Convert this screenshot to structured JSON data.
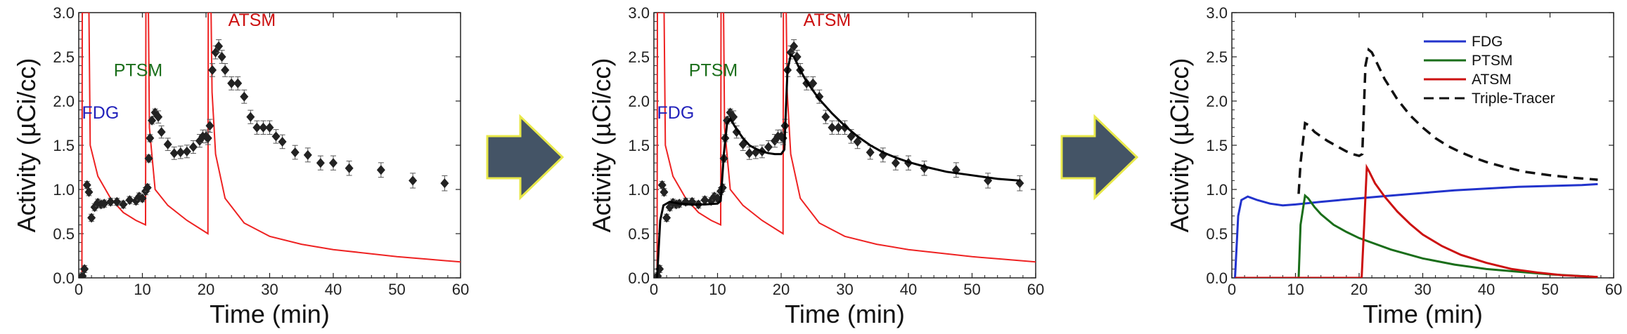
{
  "arrow_color": "#445466",
  "arrow_border": "#e8e84a",
  "chart_data": [
    {
      "type": "scatter",
      "xlabel": "Time (min)",
      "ylabel": "Activity (µCi/cc)",
      "xlim": [
        0,
        60
      ],
      "ylim": [
        0,
        3
      ],
      "xticks": [
        "0",
        "10",
        "20",
        "30",
        "40",
        "50",
        "60"
      ],
      "yticks": [
        "0.0",
        "0.5",
        "1.0",
        "1.5",
        "2.0",
        "2.5",
        "3.0"
      ],
      "labels": [
        {
          "text": "FDG",
          "color": "#2222bb",
          "x": 0.5,
          "y": 1.8
        },
        {
          "text": "PTSM",
          "color": "#1a6e1a",
          "x": 5.5,
          "y": 2.28
        },
        {
          "text": "ATSM",
          "color": "#cc1111",
          "x": 23.5,
          "y": 2.85
        }
      ],
      "input_curve_color": "#ee2222",
      "input_curve": [
        [
          0.5,
          0
        ],
        [
          0.55,
          3
        ],
        [
          1.6,
          3
        ],
        [
          1.8,
          1.5
        ],
        [
          3,
          1.15
        ],
        [
          5,
          0.9
        ],
        [
          7,
          0.74
        ],
        [
          9,
          0.65
        ],
        [
          10.5,
          0.6
        ],
        [
          10.55,
          3
        ],
        [
          10.95,
          3
        ],
        [
          11.1,
          1.7
        ],
        [
          12,
          1.0
        ],
        [
          14,
          0.82
        ],
        [
          17,
          0.65
        ],
        [
          20.3,
          0.5
        ],
        [
          20.35,
          3
        ],
        [
          20.8,
          3
        ],
        [
          20.95,
          2.1
        ],
        [
          21.5,
          1.4
        ],
        [
          23,
          0.9
        ],
        [
          26,
          0.62
        ],
        [
          30,
          0.47
        ],
        [
          35,
          0.38
        ],
        [
          40,
          0.32
        ],
        [
          45,
          0.28
        ],
        [
          50,
          0.24
        ],
        [
          55,
          0.21
        ],
        [
          60,
          0.18
        ]
      ],
      "points": [
        [
          0.2,
          0
        ],
        [
          0.4,
          0
        ],
        [
          0.6,
          0.02
        ],
        [
          0.9,
          0.1
        ],
        [
          1.3,
          1.05
        ],
        [
          1.6,
          0.97
        ],
        [
          2.0,
          0.68
        ],
        [
          2.5,
          0.8
        ],
        [
          3.0,
          0.85
        ],
        [
          3.5,
          0.83
        ],
        [
          4.0,
          0.84
        ],
        [
          5.0,
          0.86
        ],
        [
          6.0,
          0.86
        ],
        [
          7.0,
          0.83
        ],
        [
          8.0,
          0.88
        ],
        [
          9.0,
          0.87
        ],
        [
          9.5,
          0.92
        ],
        [
          10.0,
          0.9
        ],
        [
          10.5,
          0.98
        ],
        [
          10.8,
          1.02
        ],
        [
          11.0,
          1.35
        ],
        [
          11.2,
          1.58
        ],
        [
          11.5,
          1.78
        ],
        [
          12.0,
          1.87
        ],
        [
          12.5,
          1.82
        ],
        [
          13.0,
          1.65
        ],
        [
          14,
          1.51
        ],
        [
          15,
          1.41
        ],
        [
          16,
          1.42
        ],
        [
          17,
          1.43
        ],
        [
          18,
          1.48
        ],
        [
          19,
          1.55
        ],
        [
          19.5,
          1.6
        ],
        [
          20,
          1.6
        ],
        [
          20.3,
          1.58
        ],
        [
          20.6,
          1.72
        ],
        [
          21.0,
          2.35
        ],
        [
          21.5,
          2.55
        ],
        [
          22,
          2.62
        ],
        [
          22.5,
          2.5
        ],
        [
          23,
          2.35
        ],
        [
          24,
          2.2
        ],
        [
          25,
          2.2
        ],
        [
          26,
          2.05
        ],
        [
          27,
          1.82
        ],
        [
          28,
          1.7
        ],
        [
          29,
          1.7
        ],
        [
          30,
          1.7
        ],
        [
          31,
          1.6
        ],
        [
          32,
          1.54
        ],
        [
          34,
          1.42
        ],
        [
          36,
          1.39
        ],
        [
          38,
          1.3
        ],
        [
          40,
          1.3
        ],
        [
          42.5,
          1.24
        ],
        [
          47.5,
          1.22
        ],
        [
          52.5,
          1.1
        ],
        [
          57.5,
          1.07
        ]
      ]
    },
    {
      "type": "scatter",
      "xlabel": "Time (min)",
      "ylabel": "Activity (µCi/cc)",
      "xlim": [
        0,
        60
      ],
      "ylim": [
        0,
        3
      ],
      "xticks": [
        "0",
        "10",
        "20",
        "30",
        "40",
        "50",
        "60"
      ],
      "yticks": [
        "0.0",
        "0.5",
        "1.0",
        "1.5",
        "2.0",
        "2.5",
        "3.0"
      ],
      "labels": [
        {
          "text": "FDG",
          "color": "#2222bb",
          "x": 0.5,
          "y": 1.8
        },
        {
          "text": "PTSM",
          "color": "#1a6e1a",
          "x": 5.5,
          "y": 2.28
        },
        {
          "text": "ATSM",
          "color": "#cc1111",
          "x": 23.5,
          "y": 2.85
        }
      ],
      "input_curve_color": "#ee2222",
      "input_curve": [
        [
          0.5,
          0
        ],
        [
          0.55,
          3
        ],
        [
          1.6,
          3
        ],
        [
          1.8,
          1.5
        ],
        [
          3,
          1.15
        ],
        [
          5,
          0.9
        ],
        [
          7,
          0.74
        ],
        [
          9,
          0.65
        ],
        [
          10.5,
          0.6
        ],
        [
          10.55,
          3
        ],
        [
          10.95,
          3
        ],
        [
          11.1,
          1.7
        ],
        [
          12,
          1.0
        ],
        [
          14,
          0.82
        ],
        [
          17,
          0.65
        ],
        [
          20.3,
          0.5
        ],
        [
          20.35,
          3
        ],
        [
          20.8,
          3
        ],
        [
          20.95,
          2.1
        ],
        [
          21.5,
          1.4
        ],
        [
          23,
          0.9
        ],
        [
          26,
          0.62
        ],
        [
          30,
          0.47
        ],
        [
          35,
          0.38
        ],
        [
          40,
          0.32
        ],
        [
          45,
          0.28
        ],
        [
          50,
          0.24
        ],
        [
          55,
          0.21
        ],
        [
          60,
          0.18
        ]
      ],
      "fit_curve": [
        [
          0.5,
          0
        ],
        [
          1.0,
          0.65
        ],
        [
          1.5,
          0.82
        ],
        [
          2.5,
          0.86
        ],
        [
          4,
          0.84
        ],
        [
          6,
          0.83
        ],
        [
          8,
          0.83
        ],
        [
          10,
          0.84
        ],
        [
          10.5,
          0.87
        ],
        [
          11,
          1.4
        ],
        [
          11.5,
          1.75
        ],
        [
          12,
          1.8
        ],
        [
          13,
          1.68
        ],
        [
          14,
          1.58
        ],
        [
          15,
          1.5
        ],
        [
          16,
          1.46
        ],
        [
          17,
          1.43
        ],
        [
          18,
          1.41
        ],
        [
          19,
          1.4
        ],
        [
          20,
          1.4
        ],
        [
          20.5,
          1.45
        ],
        [
          21,
          2.35
        ],
        [
          21.5,
          2.52
        ],
        [
          22,
          2.5
        ],
        [
          23,
          2.35
        ],
        [
          24,
          2.22
        ],
        [
          26,
          2.02
        ],
        [
          28,
          1.86
        ],
        [
          30,
          1.72
        ],
        [
          32,
          1.6
        ],
        [
          34,
          1.5
        ],
        [
          36,
          1.42
        ],
        [
          38,
          1.36
        ],
        [
          40,
          1.31
        ],
        [
          43,
          1.25
        ],
        [
          46,
          1.2
        ],
        [
          50,
          1.16
        ],
        [
          54,
          1.12
        ],
        [
          57.5,
          1.1
        ]
      ],
      "points": [
        [
          0.2,
          0
        ],
        [
          0.4,
          0
        ],
        [
          0.6,
          0.02
        ],
        [
          0.9,
          0.1
        ],
        [
          1.3,
          1.05
        ],
        [
          1.6,
          0.97
        ],
        [
          2.0,
          0.68
        ],
        [
          2.5,
          0.8
        ],
        [
          3.0,
          0.85
        ],
        [
          3.5,
          0.83
        ],
        [
          4.0,
          0.84
        ],
        [
          5.0,
          0.86
        ],
        [
          6.0,
          0.86
        ],
        [
          7.0,
          0.83
        ],
        [
          8.0,
          0.88
        ],
        [
          9.0,
          0.87
        ],
        [
          9.5,
          0.92
        ],
        [
          10.0,
          0.9
        ],
        [
          10.5,
          0.98
        ],
        [
          10.8,
          1.02
        ],
        [
          11.0,
          1.35
        ],
        [
          11.2,
          1.58
        ],
        [
          11.5,
          1.78
        ],
        [
          12.0,
          1.87
        ],
        [
          12.5,
          1.82
        ],
        [
          13.0,
          1.65
        ],
        [
          14,
          1.51
        ],
        [
          15,
          1.41
        ],
        [
          16,
          1.42
        ],
        [
          17,
          1.43
        ],
        [
          18,
          1.48
        ],
        [
          19,
          1.55
        ],
        [
          19.5,
          1.6
        ],
        [
          20,
          1.6
        ],
        [
          20.3,
          1.58
        ],
        [
          20.6,
          1.72
        ],
        [
          21.0,
          2.35
        ],
        [
          21.5,
          2.55
        ],
        [
          22,
          2.62
        ],
        [
          22.5,
          2.5
        ],
        [
          23,
          2.35
        ],
        [
          24,
          2.2
        ],
        [
          25,
          2.2
        ],
        [
          26,
          2.05
        ],
        [
          27,
          1.82
        ],
        [
          28,
          1.7
        ],
        [
          29,
          1.7
        ],
        [
          30,
          1.7
        ],
        [
          31,
          1.6
        ],
        [
          32,
          1.54
        ],
        [
          34,
          1.42
        ],
        [
          36,
          1.39
        ],
        [
          38,
          1.3
        ],
        [
          40,
          1.3
        ],
        [
          42.5,
          1.24
        ],
        [
          47.5,
          1.22
        ],
        [
          52.5,
          1.1
        ],
        [
          57.5,
          1.07
        ]
      ]
    },
    {
      "type": "line",
      "xlabel": "Time (min)",
      "ylabel": "Activity (µCi/cc)",
      "xlim": [
        0,
        60
      ],
      "ylim": [
        0,
        3
      ],
      "xticks": [
        "0",
        "10",
        "20",
        "30",
        "40",
        "50",
        "60"
      ],
      "yticks": [
        "0.0",
        "0.5",
        "1.0",
        "1.5",
        "2.0",
        "2.5",
        "3.0"
      ],
      "legend_position": "top-right",
      "series": [
        {
          "name": "FDG",
          "color": "#2233cc",
          "dash": false,
          "points": [
            [
              0.5,
              0
            ],
            [
              1.0,
              0.7
            ],
            [
              1.5,
              0.88
            ],
            [
              2.5,
              0.92
            ],
            [
              4,
              0.88
            ],
            [
              6,
              0.84
            ],
            [
              8,
              0.82
            ],
            [
              10,
              0.83
            ],
            [
              14,
              0.86
            ],
            [
              20,
              0.9
            ],
            [
              25,
              0.93
            ],
            [
              30,
              0.96
            ],
            [
              35,
              0.99
            ],
            [
              40,
              1.01
            ],
            [
              45,
              1.03
            ],
            [
              50,
              1.04
            ],
            [
              55,
              1.05
            ],
            [
              57.5,
              1.06
            ]
          ]
        },
        {
          "name": "PTSM",
          "color": "#1a6e1a",
          "dash": false,
          "points": [
            [
              10.5,
              0
            ],
            [
              10.8,
              0.6
            ],
            [
              11.5,
              0.93
            ],
            [
              12,
              0.9
            ],
            [
              13,
              0.8
            ],
            [
              14,
              0.72
            ],
            [
              16,
              0.6
            ],
            [
              18,
              0.52
            ],
            [
              20,
              0.45
            ],
            [
              25,
              0.32
            ],
            [
              30,
              0.22
            ],
            [
              35,
              0.15
            ],
            [
              40,
              0.1
            ],
            [
              45,
              0.07
            ],
            [
              50,
              0.04
            ],
            [
              55,
              0.02
            ],
            [
              57.5,
              0.01
            ]
          ]
        },
        {
          "name": "ATSM",
          "color": "#cc1111",
          "dash": false,
          "points": [
            [
              0.5,
              0
            ],
            [
              20.4,
              0
            ],
            [
              20.8,
              0.6
            ],
            [
              21.2,
              1.25
            ],
            [
              21.6,
              1.2
            ],
            [
              22.5,
              1.07
            ],
            [
              24,
              0.92
            ],
            [
              26,
              0.75
            ],
            [
              28,
              0.61
            ],
            [
              30,
              0.49
            ],
            [
              33,
              0.36
            ],
            [
              36,
              0.26
            ],
            [
              40,
              0.17
            ],
            [
              44,
              0.1
            ],
            [
              48,
              0.06
            ],
            [
              52,
              0.03
            ],
            [
              57.5,
              0.01
            ]
          ]
        },
        {
          "name": "Triple-Tracer",
          "color": "#111111",
          "dash": true,
          "points": [
            [
              10.5,
              0.95
            ],
            [
              10.8,
              1.3
            ],
            [
              11.5,
              1.75
            ],
            [
              12,
              1.73
            ],
            [
              13,
              1.65
            ],
            [
              14,
              1.6
            ],
            [
              15,
              1.55
            ],
            [
              16,
              1.51
            ],
            [
              17,
              1.47
            ],
            [
              18,
              1.43
            ],
            [
              19,
              1.4
            ],
            [
              20,
              1.38
            ],
            [
              20.5,
              1.4
            ],
            [
              21,
              2.4
            ],
            [
              21.5,
              2.58
            ],
            [
              22,
              2.55
            ],
            [
              23,
              2.4
            ],
            [
              24,
              2.25
            ],
            [
              26,
              2.02
            ],
            [
              28,
              1.84
            ],
            [
              30,
              1.7
            ],
            [
              32,
              1.58
            ],
            [
              34,
              1.49
            ],
            [
              36,
              1.42
            ],
            [
              38,
              1.36
            ],
            [
              40,
              1.31
            ],
            [
              43,
              1.25
            ],
            [
              46,
              1.2
            ],
            [
              50,
              1.16
            ],
            [
              54,
              1.13
            ],
            [
              57.5,
              1.11
            ]
          ]
        }
      ]
    }
  ]
}
